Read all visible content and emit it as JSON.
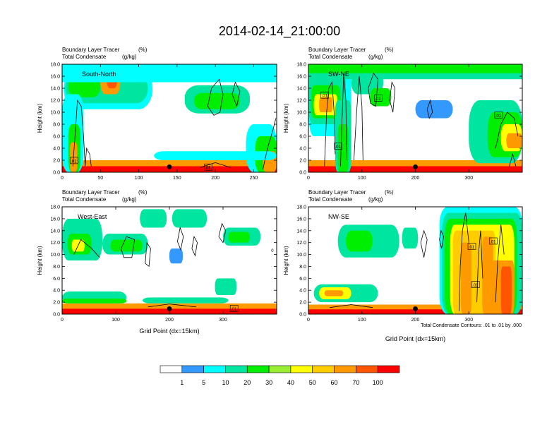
{
  "chart_data": {
    "type": "heatmap",
    "title": "2014-02-14_21:00:00",
    "colorbar": {
      "levels": [
        "1",
        "5",
        "10",
        "20",
        "30",
        "40",
        "50",
        "60",
        "70",
        "100"
      ],
      "colors": [
        "#ffffff",
        "#3399ff",
        "#00ffff",
        "#00e6a0",
        "#00ee00",
        "#99ee33",
        "#ffff00",
        "#ffcc00",
        "#ff9900",
        "#ff5500",
        "#ff0000"
      ]
    },
    "contour_note": "Total Condensate Contours: .01 to .01 by .000",
    "panels": [
      {
        "name": "South-North",
        "left_title_line1": "Boundary Layer Tracer",
        "right_title_line1": "(%)",
        "left_title_line2": "Total Condensate",
        "right_title_line2": "(g/kg)",
        "ylabel": "Height (km)",
        "xlabel": "",
        "xlim": [
          0,
          280
        ],
        "ylim": [
          0,
          18
        ],
        "xticks": [
          "0",
          "50",
          "100",
          "150",
          "200",
          "250"
        ],
        "yticks": [
          "0.0",
          "2.0",
          "4.0",
          "6.0",
          "8.0",
          "10.0",
          "12.0",
          "14.0",
          "16.0",
          "18.0"
        ],
        "contour_labels": [
          ".01",
          ".01"
        ],
        "marker_x": 140
      },
      {
        "name": "SW-NE",
        "left_title_line1": "Boundary Layer Tracer",
        "right_title_line1": "(%)",
        "left_title_line2": "Total Condensate",
        "right_title_line2": "(g/kg)",
        "ylabel": "Height (km)",
        "xlabel": "",
        "xlim": [
          0,
          400
        ],
        "ylim": [
          0,
          18
        ],
        "xticks": [
          "0",
          "100",
          "200",
          "300"
        ],
        "yticks": [
          "0.0",
          "2.0",
          "4.0",
          "6.0",
          "8.0",
          "10.0",
          "12.0",
          "14.0",
          "16.0",
          "18.0"
        ],
        "contour_labels": [
          ".01",
          ".01",
          ".01",
          ".01"
        ],
        "marker_x": 200
      },
      {
        "name": "West-East",
        "left_title_line1": "Boundary Layer Tracer",
        "right_title_line1": "(%)",
        "left_title_line2": "Total Condensate",
        "right_title_line2": "(g/kg)",
        "ylabel": "Height (km)",
        "xlabel": "Grid Point (dx=15km)",
        "xlim": [
          0,
          400
        ],
        "ylim": [
          0,
          18
        ],
        "xticks": [
          "0",
          "100",
          "200",
          "300"
        ],
        "yticks": [
          "0.0",
          "2.0",
          "4.0",
          "6.0",
          "8.0",
          "10.0",
          "12.0",
          "14.0",
          "16.0",
          "18.0"
        ],
        "contour_labels": [
          ".01",
          "0"
        ],
        "marker_x": 200
      },
      {
        "name": "NW-SE",
        "left_title_line1": "Boundary Layer Tracer",
        "right_title_line1": "(%)",
        "left_title_line2": "Total Condensate",
        "right_title_line2": "(g/kg)",
        "ylabel": "Height (km)",
        "xlabel": "Grid Point (dx=15km)",
        "xlim": [
          0,
          400
        ],
        "ylim": [
          0,
          18
        ],
        "xticks": [
          "0",
          "100",
          "200",
          "300"
        ],
        "yticks": [
          "0.0",
          "2.0",
          "4.0",
          "6.0",
          "8.0",
          "10.0",
          "12.0",
          "14.0",
          "16.0",
          "18.0"
        ],
        "contour_labels": [
          ".01",
          ".01",
          ".01"
        ],
        "marker_x": 200
      }
    ]
  }
}
